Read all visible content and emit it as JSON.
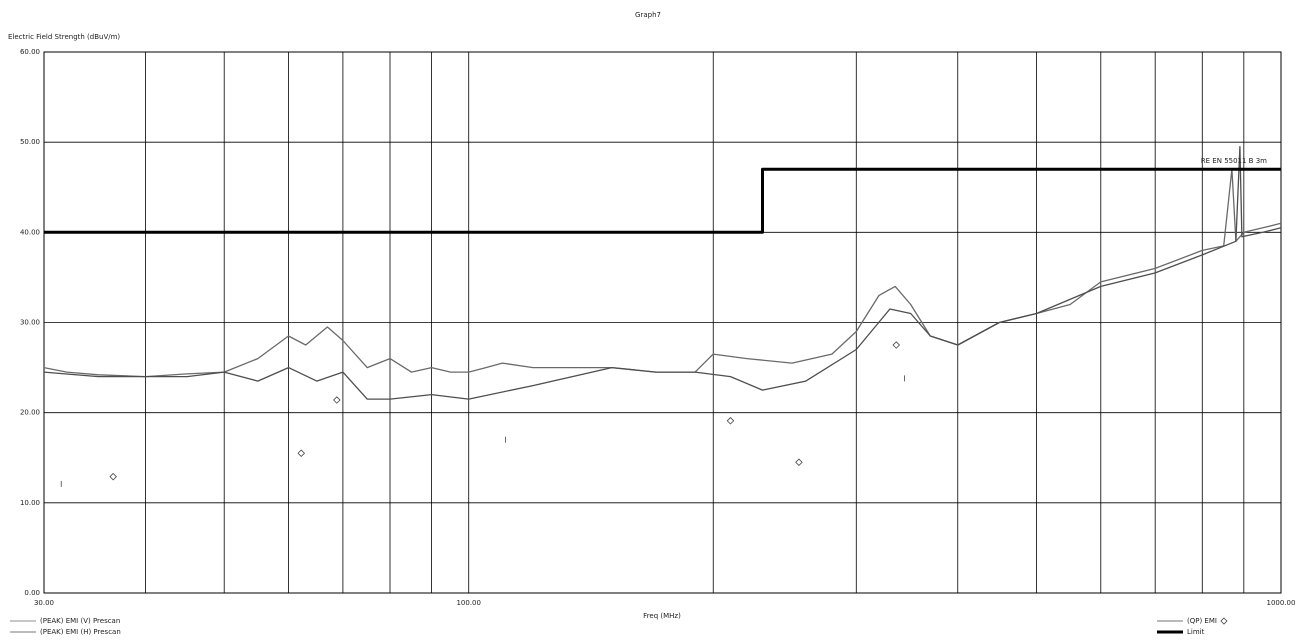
{
  "chart_data": {
    "type": "line",
    "title": "Graph7",
    "y_label": "Electric Field Strength (dBuV/m)",
    "x_label": "Freq (MHz)",
    "x_scale": "log",
    "xlim": [
      30,
      1000
    ],
    "ylim": [
      0,
      60
    ],
    "xticks": [
      {
        "value": 30,
        "label": "30.00"
      },
      {
        "value": 100,
        "label": "100.00"
      },
      {
        "value": 1000,
        "label": "1000.00"
      }
    ],
    "xminor_ticks": [
      40,
      50,
      60,
      70,
      80,
      90,
      200,
      300,
      400,
      500,
      600,
      700,
      800,
      900
    ],
    "yticks": [
      {
        "value": 0,
        "label": "0.00"
      },
      {
        "value": 10,
        "label": "10.00"
      },
      {
        "value": 20,
        "label": "20.00"
      },
      {
        "value": 30,
        "label": "30.00"
      },
      {
        "value": 40,
        "label": "40.00"
      },
      {
        "value": 50,
        "label": "50.00"
      },
      {
        "value": 60,
        "label": "60.00"
      }
    ],
    "grid": true,
    "series": [
      {
        "name": "(PEAK) EMI (V) Prescan",
        "color": "#6a6a6a",
        "marker": "line",
        "x": [
          30,
          32,
          35,
          40,
          45,
          50,
          55,
          60,
          63,
          67,
          70,
          75,
          80,
          85,
          90,
          95,
          100,
          105,
          110,
          120,
          130,
          150,
          170,
          190,
          200,
          220,
          250,
          280,
          300,
          320,
          335,
          350,
          370,
          400,
          450,
          500,
          550,
          600,
          700,
          800,
          850,
          870,
          880,
          900,
          950,
          1000
        ],
        "values": [
          25,
          24.5,
          24.2,
          24,
          24.3,
          24.5,
          26,
          28.5,
          27.5,
          29.5,
          28,
          25,
          26,
          24.5,
          25,
          24.5,
          24.5,
          25,
          25.5,
          25,
          25,
          25,
          24.5,
          24.5,
          26.5,
          26,
          25.5,
          26.5,
          29,
          33,
          34,
          32,
          28.5,
          27.5,
          30,
          31,
          32,
          34.5,
          36,
          38,
          38.5,
          47,
          39,
          40,
          40.5,
          41
        ]
      },
      {
        "name": "(PEAK) EMI (H) Prescan",
        "color": "#4e4e4e",
        "marker": "line",
        "x": [
          30,
          35,
          40,
          45,
          50,
          55,
          60,
          65,
          70,
          75,
          80,
          90,
          100,
          120,
          150,
          170,
          190,
          210,
          230,
          260,
          300,
          330,
          350,
          370,
          400,
          450,
          500,
          600,
          700,
          800,
          880,
          890,
          895,
          950,
          1000
        ],
        "values": [
          24.5,
          24,
          24,
          24,
          24.5,
          23.5,
          25,
          23.5,
          24.5,
          21.5,
          21.5,
          22,
          21.5,
          23,
          25,
          24.5,
          24.5,
          24,
          22.5,
          23.5,
          27,
          31.5,
          31,
          28.5,
          27.5,
          30,
          31,
          34,
          35.5,
          37.5,
          39,
          49.5,
          39.5,
          40,
          40.5
        ]
      },
      {
        "name": "(QP) EMI",
        "color": "#444444",
        "marker": "diamond",
        "x": [
          36.5,
          62.2,
          68.8,
          210,
          255,
          336
        ],
        "values": [
          12.9,
          15.5,
          21.4,
          19.1,
          14.5,
          27.5
        ]
      },
      {
        "name": "Limit",
        "color": "#000000",
        "marker": "thick-line",
        "x": [
          30,
          230,
          230,
          1000
        ],
        "values": [
          40,
          40,
          47,
          47
        ]
      }
    ],
    "markers": {
      "x": [
        31.5,
        111,
        344
      ],
      "values": [
        12.1,
        17.0,
        23.8
      ]
    },
    "annotations": [
      {
        "text": "RE EN 55011 B 3m"
      }
    ]
  }
}
